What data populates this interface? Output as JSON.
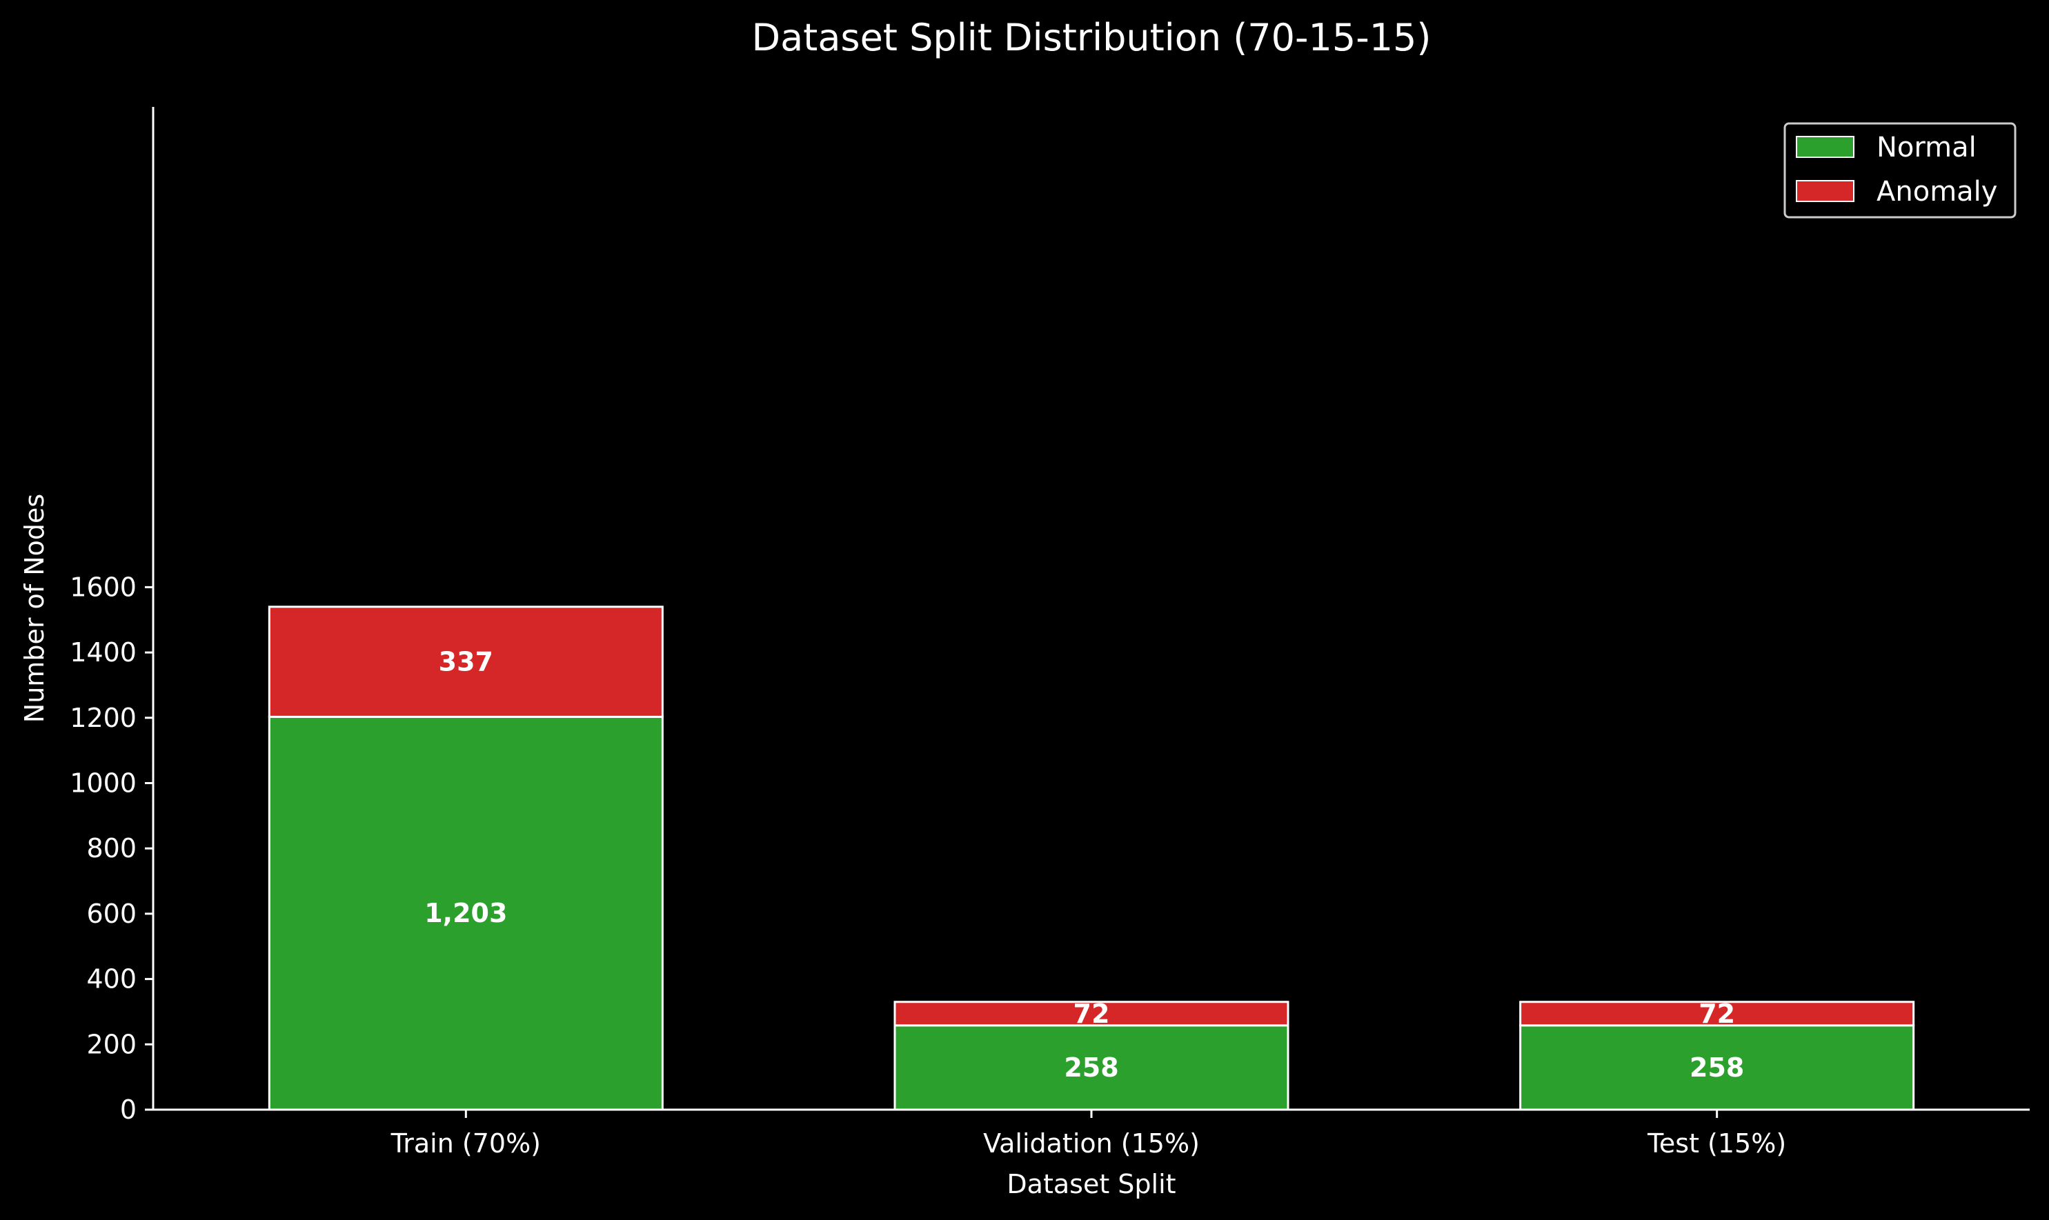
{
  "chart_data": {
    "type": "bar",
    "stacked": true,
    "title": "Dataset Split Distribution (70-15-15)",
    "xlabel": "Dataset Split",
    "ylabel": "Number of Nodes",
    "categories": [
      "Train (70%)",
      "Validation (15%)",
      "Test (15%)"
    ],
    "series": [
      {
        "name": "Normal",
        "values": [
          1203,
          258,
          258
        ],
        "labels": [
          "1,203",
          "258",
          "258"
        ],
        "color": "#2ca02c"
      },
      {
        "name": "Anomaly",
        "values": [
          337,
          72,
          72
        ],
        "labels": [
          "337",
          "72",
          "72"
        ],
        "color": "#d62728"
      }
    ],
    "ylim": [
      0,
      1620
    ],
    "yticks": [
      0,
      200,
      400,
      600,
      800,
      1000,
      1200,
      1400,
      1600
    ],
    "grid": false,
    "legend_position": "top-right"
  }
}
